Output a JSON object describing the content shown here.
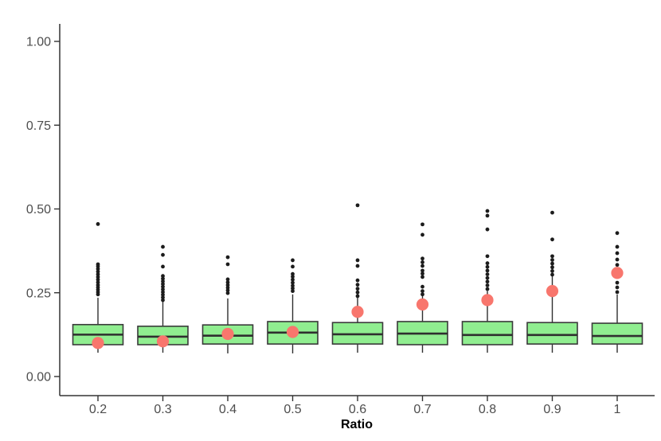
{
  "chart_data": {
    "type": "boxplot",
    "title": "",
    "xlabel": "Ratio",
    "ylabel": "",
    "ylim": [
      0,
      1.04
    ],
    "grid": false,
    "legend": "none",
    "background": "#ffffff",
    "yticks": [
      0,
      0.25,
      0.5,
      0.75,
      1.0
    ],
    "ytick_labels": [
      "0.00",
      "0.25",
      "0.50",
      "0.75",
      "1.00"
    ],
    "categories": [
      "0.2",
      "0.3",
      "0.4",
      "0.5",
      "0.6",
      "0.7",
      "0.8",
      "0.9",
      "1"
    ],
    "boxes": [
      {
        "category": "0.2",
        "whisker_low": 0.071,
        "q1": 0.095,
        "median": 0.125,
        "q3": 0.155,
        "whisker_high": 0.235,
        "mean": 0.1,
        "outliers": [
          0.245,
          0.252,
          0.259,
          0.266,
          0.273,
          0.281,
          0.289,
          0.297,
          0.305,
          0.313,
          0.321,
          0.329,
          0.335,
          0.455
        ]
      },
      {
        "category": "0.3",
        "whisker_low": 0.071,
        "q1": 0.095,
        "median": 0.119,
        "q3": 0.15,
        "whisker_high": 0.225,
        "mean": 0.105,
        "outliers": [
          0.228,
          0.236,
          0.244,
          0.252,
          0.26,
          0.268,
          0.276,
          0.284,
          0.292,
          0.3,
          0.328,
          0.363,
          0.387
        ]
      },
      {
        "category": "0.4",
        "whisker_low": 0.069,
        "q1": 0.097,
        "median": 0.122,
        "q3": 0.154,
        "whisker_high": 0.233,
        "mean": 0.127,
        "outliers": [
          0.249,
          0.257,
          0.265,
          0.273,
          0.281,
          0.29,
          0.335,
          0.356
        ]
      },
      {
        "category": "0.5",
        "whisker_low": 0.069,
        "q1": 0.097,
        "median": 0.131,
        "q3": 0.164,
        "whisker_high": 0.245,
        "mean": 0.133,
        "outliers": [
          0.255,
          0.263,
          0.271,
          0.28,
          0.289,
          0.298,
          0.306,
          0.328,
          0.347
        ]
      },
      {
        "category": "0.6",
        "whisker_low": 0.071,
        "q1": 0.097,
        "median": 0.126,
        "q3": 0.161,
        "whisker_high": 0.235,
        "mean": 0.193,
        "outliers": [
          0.24,
          0.251,
          0.262,
          0.274,
          0.287,
          0.33,
          0.347,
          0.511
        ]
      },
      {
        "category": "0.7",
        "whisker_low": 0.071,
        "q1": 0.095,
        "median": 0.128,
        "q3": 0.164,
        "whisker_high": 0.24,
        "mean": 0.215,
        "outliers": [
          0.245,
          0.255,
          0.268,
          0.297,
          0.307,
          0.316,
          0.33,
          0.341,
          0.352,
          0.423,
          0.454
        ]
      },
      {
        "category": "0.8",
        "whisker_low": 0.071,
        "q1": 0.095,
        "median": 0.124,
        "q3": 0.164,
        "whisker_high": 0.255,
        "mean": 0.228,
        "outliers": [
          0.261,
          0.272,
          0.283,
          0.294,
          0.305,
          0.316,
          0.327,
          0.338,
          0.359,
          0.439,
          0.48,
          0.494
        ]
      },
      {
        "category": "0.9",
        "whisker_low": 0.071,
        "q1": 0.097,
        "median": 0.124,
        "q3": 0.161,
        "whisker_high": 0.3,
        "mean": 0.255,
        "outliers": [
          0.304,
          0.315,
          0.326,
          0.337,
          0.348,
          0.359,
          0.409,
          0.489
        ]
      },
      {
        "category": "1",
        "whisker_low": 0.071,
        "q1": 0.097,
        "median": 0.121,
        "q3": 0.159,
        "whisker_high": 0.245,
        "mean": 0.309,
        "outliers": [
          0.252,
          0.266,
          0.28,
          0.333,
          0.349,
          0.368,
          0.387,
          0.428
        ]
      }
    ],
    "colors": {
      "box_fill": "#90EE90",
      "box_stroke": "#3a3a3a",
      "median": "#2f2f2f",
      "whisker": "#2f2f2f",
      "outlier": "#1c1c1c",
      "mean_point": "#F8766D",
      "axis": "#333333",
      "tick_label": "#4d4d4d",
      "axis_title": "#000000"
    }
  }
}
